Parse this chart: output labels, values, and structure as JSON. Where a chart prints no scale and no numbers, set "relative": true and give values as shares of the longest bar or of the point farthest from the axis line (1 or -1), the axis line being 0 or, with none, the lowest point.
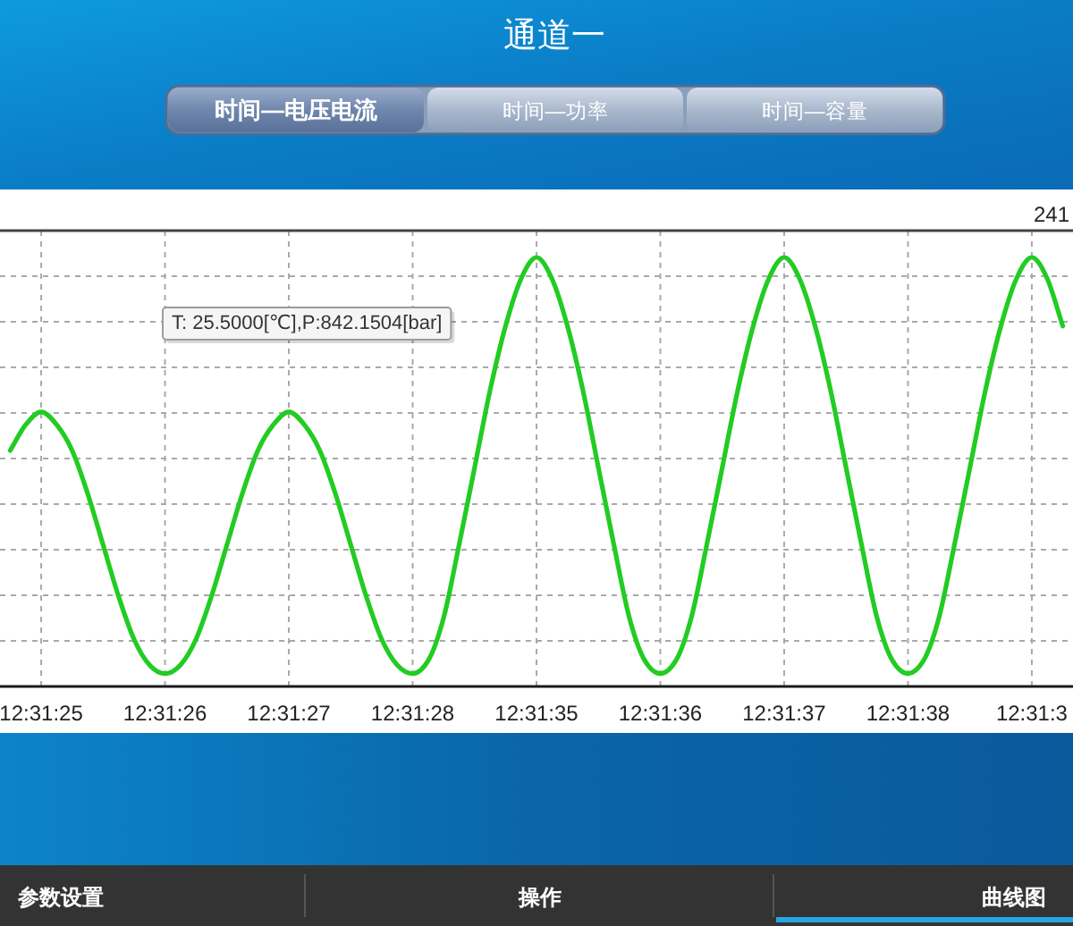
{
  "chart_data": {
    "type": "line",
    "title": "通道一",
    "categories": [
      null,
      null,
      "12:31:25",
      null,
      null,
      null,
      null,
      null,
      null,
      null,
      "12:31:26",
      null,
      null,
      null,
      null,
      null,
      null,
      null,
      "12:31:27",
      null,
      null,
      null,
      null,
      null,
      null,
      null,
      "12:31:28",
      null,
      null,
      null,
      null,
      null,
      null,
      null,
      "12:31:35",
      null,
      null,
      null,
      null,
      null,
      null,
      null,
      "12:31:36",
      null,
      null,
      null,
      null,
      null,
      null,
      null,
      "12:31:37",
      null,
      null,
      null,
      null,
      null,
      null,
      null,
      "12:31:38",
      null,
      null,
      null,
      null,
      null,
      null,
      null,
      "12:31:3",
      null,
      null
    ],
    "series": [
      {
        "color": "#22cc22",
        "values": [
          0.55,
          0.61,
          0.64,
          0.61,
          0.55,
          0.45,
          0.33,
          0.21,
          0.11,
          0.05,
          0.03,
          0.05,
          0.11,
          0.21,
          0.33,
          0.45,
          0.55,
          0.61,
          0.64,
          0.61,
          0.55,
          0.45,
          0.33,
          0.21,
          0.11,
          0.05,
          0.03,
          0.06,
          0.16,
          0.33,
          0.51,
          0.69,
          0.84,
          0.95,
          1,
          0.95,
          0.84,
          0.69,
          0.51,
          0.33,
          0.16,
          0.06,
          0.03,
          0.06,
          0.16,
          0.33,
          0.51,
          0.69,
          0.84,
          0.95,
          1,
          0.95,
          0.84,
          0.69,
          0.51,
          0.33,
          0.16,
          0.06,
          0.03,
          0.06,
          0.16,
          0.33,
          0.51,
          0.69,
          0.84,
          0.95,
          1,
          0.95,
          0.84
        ]
      }
    ],
    "relative": true,
    "tick_labels": "x",
    "grid": true,
    "line_style": "solid",
    "annotations": [
      "时间—电压电流",
      "时间—功率",
      "时间—容量",
      "241",
      "T: 25.5000[℃],P:842.1504[bar]",
      "参数设置",
      "操作",
      "曲线图"
    ]
  }
}
